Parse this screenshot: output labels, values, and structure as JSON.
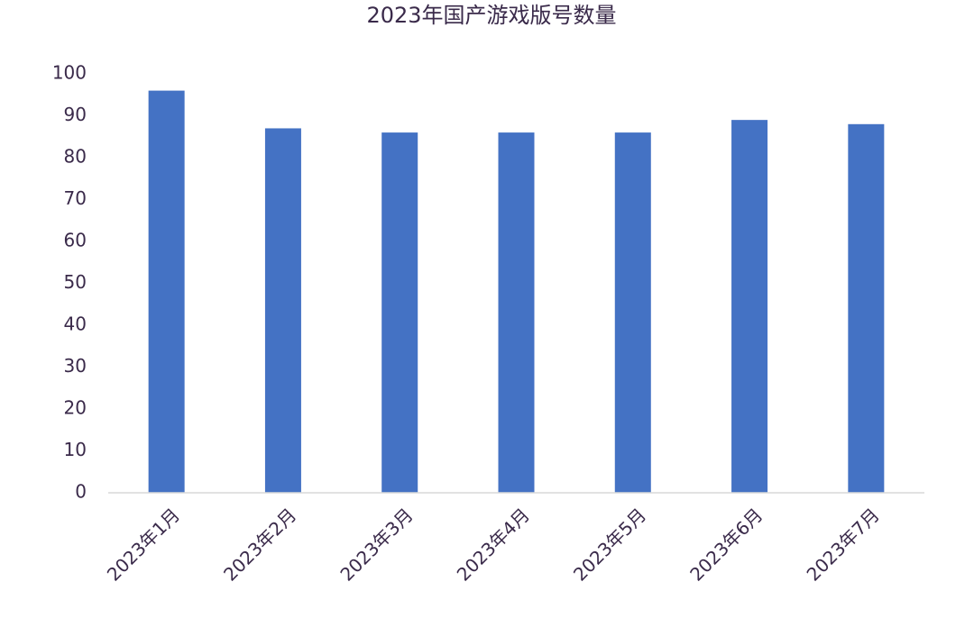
{
  "chart_data": {
    "type": "bar",
    "title": "2023年国产游戏版号数量",
    "categories": [
      "2023年1月",
      "2023年2月",
      "2023年3月",
      "2023年4月",
      "2023年5月",
      "2023年6月",
      "2023年7月"
    ],
    "values": [
      96,
      87,
      86,
      86,
      86,
      89,
      88
    ],
    "color": "#4472c4",
    "ylim": [
      0,
      100
    ],
    "yticks": [
      0,
      10,
      20,
      30,
      40,
      50,
      60,
      70,
      80,
      90,
      100
    ],
    "grid": false
  }
}
